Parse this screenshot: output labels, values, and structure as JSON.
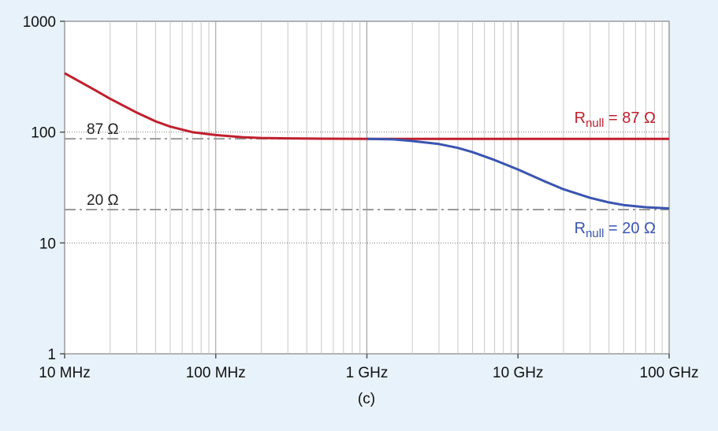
{
  "chart_data": {
    "type": "line",
    "x_scale": "log",
    "y_scale": "log",
    "xlim": [
      10000000,
      100000000000
    ],
    "ylim": [
      1,
      1000
    ],
    "x_ticks": [
      {
        "value": 10000000,
        "label": "10 MHz"
      },
      {
        "value": 100000000,
        "label": "100 MHz"
      },
      {
        "value": 1000000000,
        "label": "1 GHz"
      },
      {
        "value": 10000000000,
        "label": "10 GHz"
      },
      {
        "value": 100000000000,
        "label": "100 GHz"
      }
    ],
    "y_ticks": [
      {
        "value": 1,
        "label": "1"
      },
      {
        "value": 10,
        "label": "10"
      },
      {
        "value": 100,
        "label": "100"
      },
      {
        "value": 1000,
        "label": "1000"
      }
    ],
    "grid": true,
    "caption": "(c)",
    "reference_lines": [
      {
        "value": 87,
        "label": "87 Ω"
      },
      {
        "value": 20,
        "label": "20 Ω"
      }
    ],
    "series": [
      {
        "name_main": "R",
        "name_sub": "null",
        "name_rest": " = 87 Ω",
        "color": "#c0202e",
        "x": [
          10000000,
          15000000,
          20000000,
          30000000,
          40000000,
          50000000,
          70000000,
          100000000,
          150000000,
          200000000,
          300000000,
          500000000,
          1000000000,
          10000000000,
          100000000000
        ],
        "y": [
          340,
          250,
          200,
          150,
          125,
          112,
          100,
          94,
          90,
          88.5,
          87.8,
          87.3,
          87,
          87,
          87
        ]
      },
      {
        "name_main": "R",
        "name_sub": "null",
        "name_rest": " = 20 Ω",
        "color": "#3a55b0",
        "x": [
          1000000000,
          1500000000,
          2000000000,
          3000000000,
          4000000000,
          5000000000,
          7000000000,
          10000000000,
          15000000000,
          20000000000,
          30000000000,
          40000000000,
          50000000000,
          70000000000,
          100000000000
        ],
        "y": [
          87,
          86,
          83,
          78,
          72,
          66,
          56,
          46,
          36,
          30.5,
          25.5,
          23.2,
          22,
          21,
          20.5
        ]
      }
    ]
  }
}
